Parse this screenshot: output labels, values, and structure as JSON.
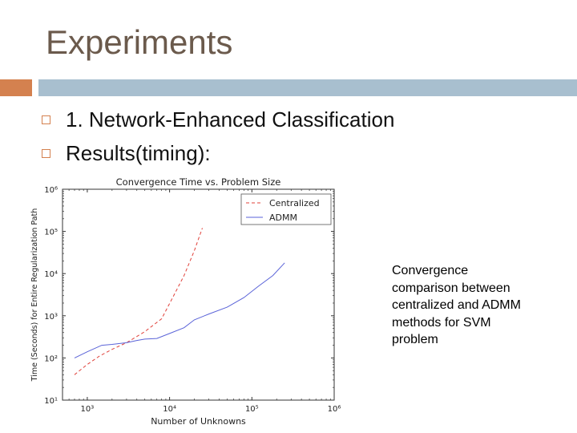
{
  "slide": {
    "title": "Experiments",
    "bullets": [
      "1. Network-Enhanced Classification",
      "Results(timing):"
    ],
    "caption_lines": [
      "Convergence",
      "comparison between",
      "centralized and ADMM",
      "methods for SVM",
      "problem"
    ]
  },
  "colors": {
    "title": "#6b5a4c",
    "accent_orange": "#d4814f",
    "accent_blue": "#a8bfcf",
    "centralized": "#e0413a",
    "admm": "#5a63d8"
  },
  "chart_data": {
    "type": "line",
    "title": "Convergence Time vs. Problem Size",
    "xlabel": "Number of Unknowns",
    "ylabel": "Time (Seconds) for Entire Regularization Path",
    "xscale": "log",
    "yscale": "log",
    "xlim": [
      500,
      1000000
    ],
    "ylim": [
      10,
      1000000
    ],
    "xticks": [
      {
        "value": 1000,
        "label": "10³"
      },
      {
        "value": 10000,
        "label": "10⁴"
      },
      {
        "value": 100000,
        "label": "10⁵"
      },
      {
        "value": 1000000,
        "label": "10⁶"
      }
    ],
    "yticks": [
      {
        "value": 10,
        "label": "10¹"
      },
      {
        "value": 100,
        "label": "10²"
      },
      {
        "value": 1000,
        "label": "10³"
      },
      {
        "value": 10000,
        "label": "10⁴"
      },
      {
        "value": 100000,
        "label": "10⁵"
      },
      {
        "value": 1000000,
        "label": "10⁶"
      }
    ],
    "legend_position": "top-right",
    "series": [
      {
        "name": "Centralized",
        "style": "dashed",
        "x": [
          700,
          1000,
          1400,
          2000,
          3000,
          5000,
          8000,
          11000,
          15000,
          20000,
          25000
        ],
        "y": [
          40,
          70,
          110,
          160,
          230,
          420,
          850,
          2800,
          9000,
          35000,
          120000
        ]
      },
      {
        "name": "ADMM",
        "style": "solid",
        "x": [
          700,
          1000,
          1500,
          2000,
          3000,
          4000,
          5000,
          7000,
          10000,
          15000,
          20000,
          30000,
          50000,
          80000,
          120000,
          180000,
          250000
        ],
        "y": [
          100,
          140,
          200,
          210,
          230,
          260,
          280,
          290,
          380,
          520,
          800,
          1100,
          1600,
          2700,
          5000,
          9000,
          18000
        ]
      }
    ]
  }
}
